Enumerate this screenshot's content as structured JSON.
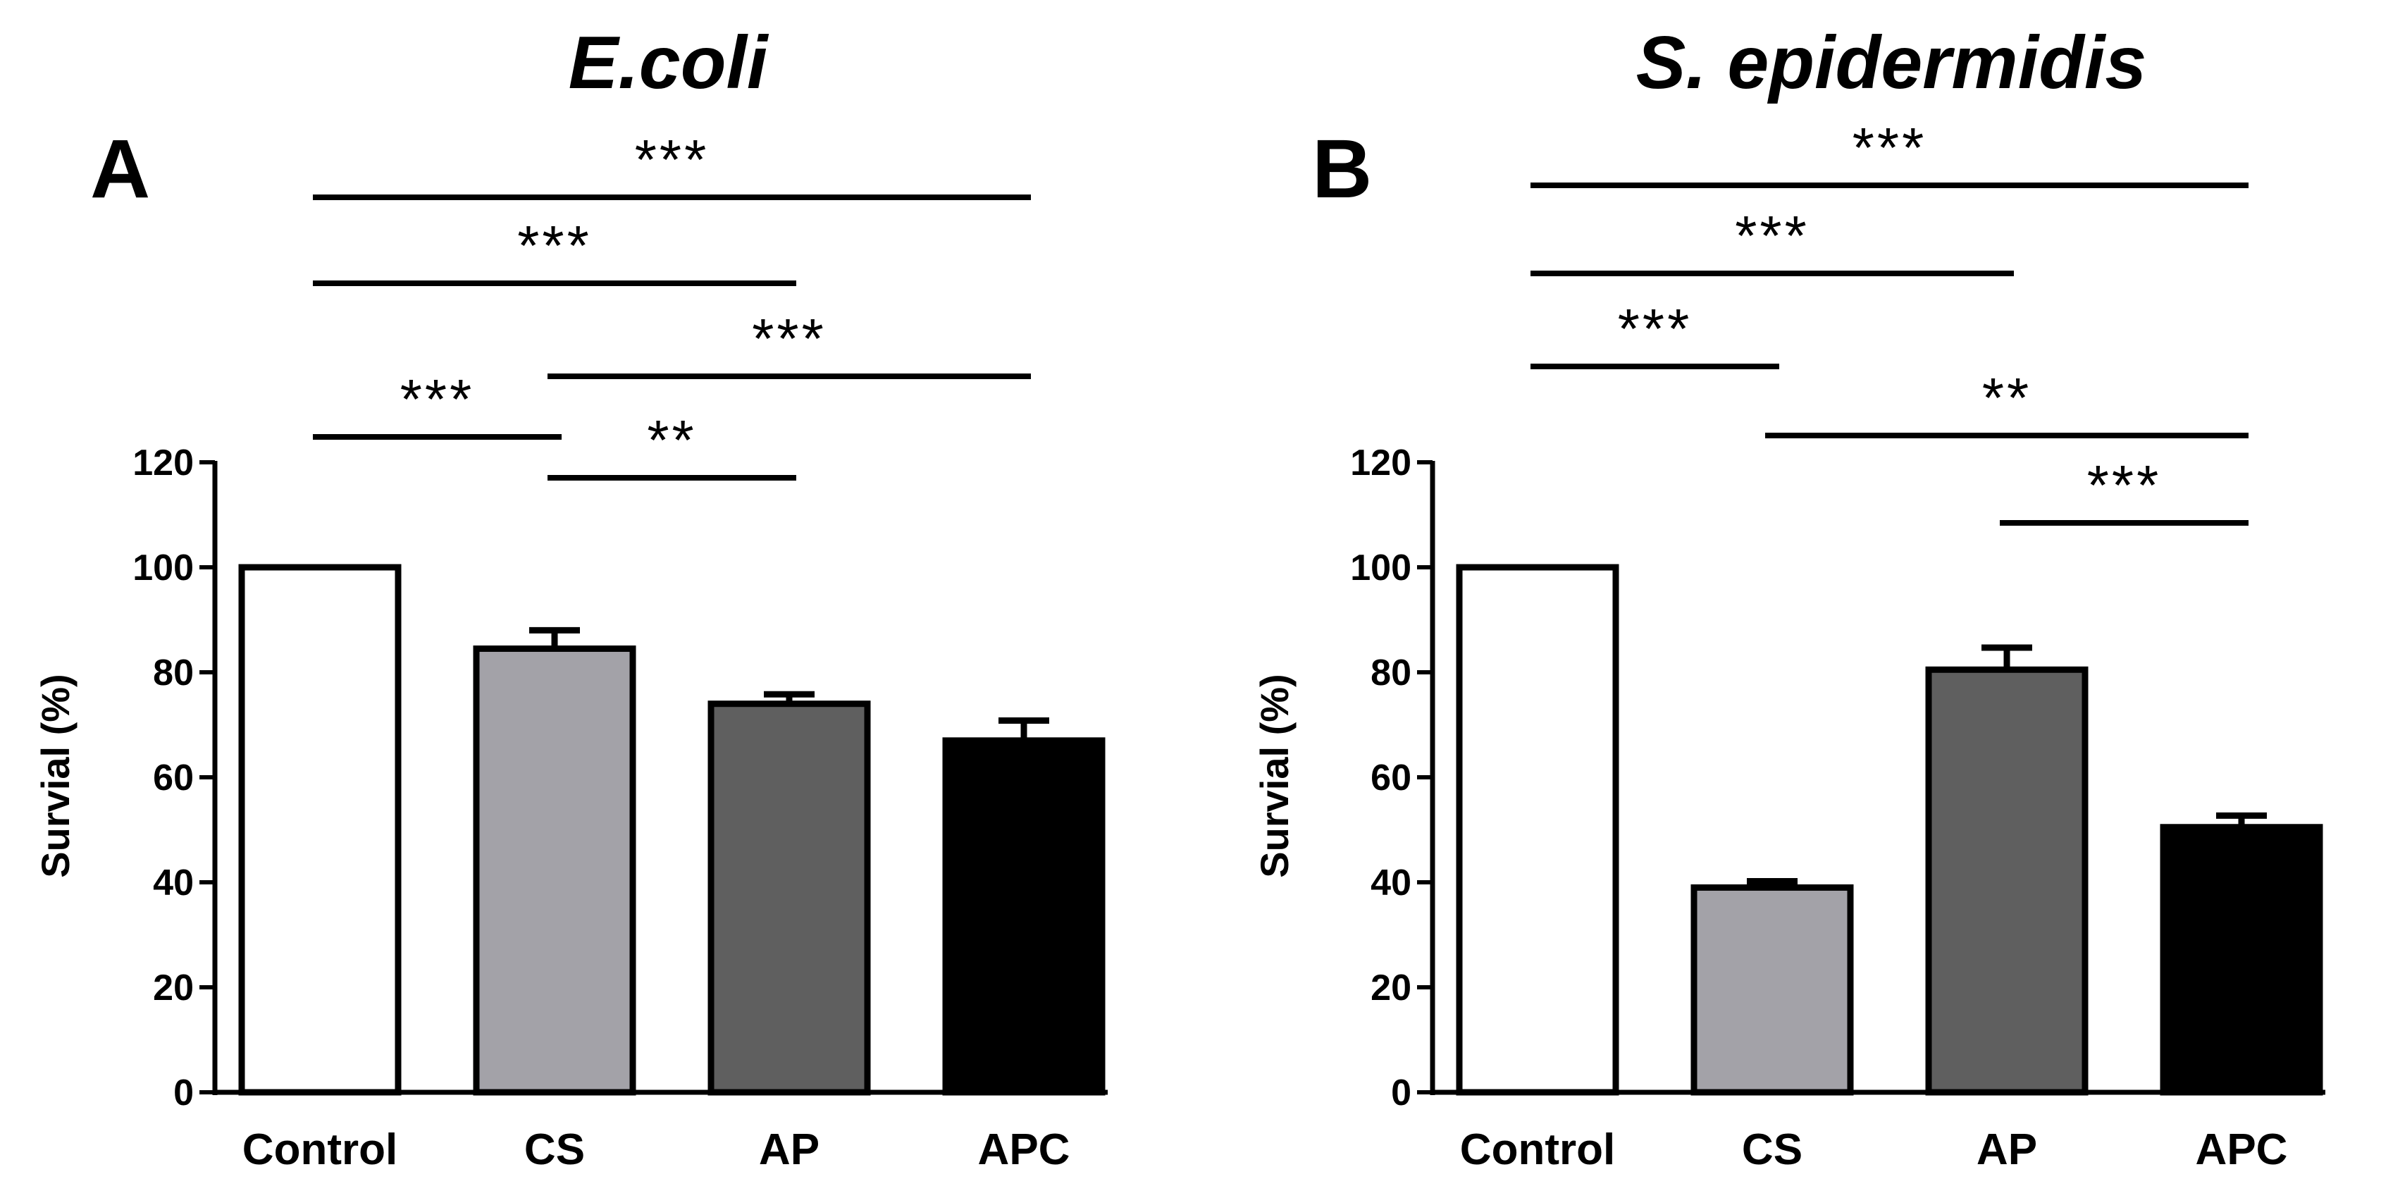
{
  "chart_data": [
    {
      "type": "bar",
      "panel_letter": "A",
      "title": "E.coli",
      "ylabel": "Survial (%)",
      "xlabel": "",
      "ylim": [
        0,
        120
      ],
      "yticks": [
        0,
        20,
        40,
        60,
        80,
        100,
        120
      ],
      "categories": [
        "Control",
        "CS",
        "AP",
        "APC"
      ],
      "values": [
        100,
        84.5,
        74,
        67
      ],
      "errors": [
        0,
        3.5,
        1.8,
        3.8
      ],
      "bar_colors": [
        "#ffffff",
        "#a3a2a8",
        "#5f5f5f",
        "#000000"
      ],
      "significance": [
        {
          "from": 0,
          "to": 3,
          "label": "***"
        },
        {
          "from": 0,
          "to": 2,
          "label": "***"
        },
        {
          "from": 1,
          "to": 3,
          "label": "***"
        },
        {
          "from": 0,
          "to": 1,
          "label": "***"
        },
        {
          "from": 1,
          "to": 2,
          "label": "**"
        }
      ]
    },
    {
      "type": "bar",
      "panel_letter": "B",
      "title": "S. epidermidis",
      "ylabel": "Survial (%)",
      "xlabel": "",
      "ylim": [
        0,
        120
      ],
      "yticks": [
        0,
        20,
        40,
        60,
        80,
        100,
        120
      ],
      "categories": [
        "Control",
        "CS",
        "AP",
        "APC"
      ],
      "values": [
        100,
        39,
        80.5,
        50.5
      ],
      "errors": [
        0,
        1.2,
        4.2,
        2.2
      ],
      "bar_colors": [
        "#ffffff",
        "#a3a2a8",
        "#5f5f5f",
        "#000000"
      ],
      "significance": [
        {
          "from": 0,
          "to": 3,
          "label": "***"
        },
        {
          "from": 0,
          "to": 2,
          "label": "***"
        },
        {
          "from": 0,
          "to": 1,
          "label": "***"
        },
        {
          "from": 1,
          "to": 3,
          "label": "**"
        },
        {
          "from": 2,
          "to": 3,
          "label": "***"
        }
      ]
    }
  ]
}
